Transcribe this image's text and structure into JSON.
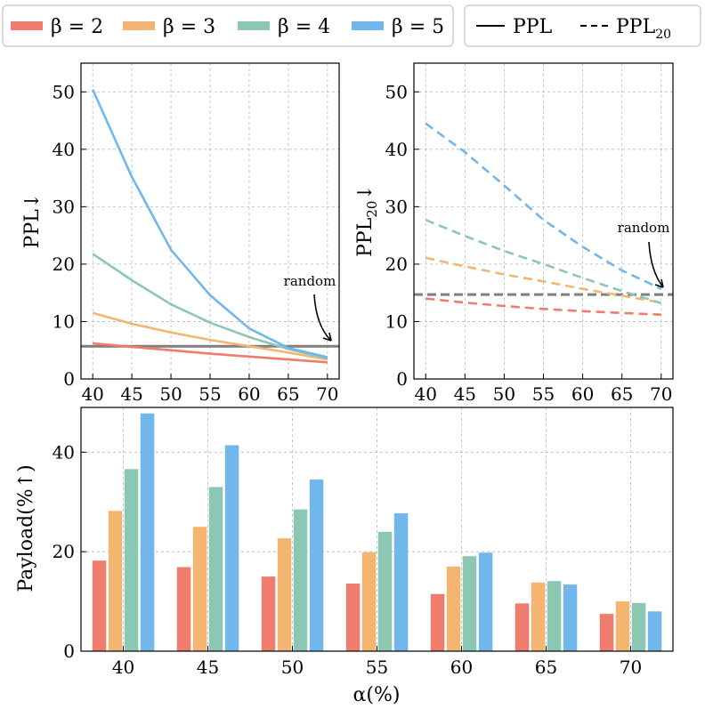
{
  "legend": {
    "beta_entries": [
      "β = 2",
      "β = 3",
      "β = 4",
      "β = 5"
    ],
    "style_solid": "PPL",
    "style_dashed_main": "PPL",
    "style_dashed_sub": "20"
  },
  "xlabel": "α(%)",
  "colors": {
    "beta2": "#f07c6e",
    "beta3": "#f3b571",
    "beta4": "#8cc7b4",
    "beta5": "#72b7ec",
    "random": "#7f7f7f"
  },
  "chart_data": [
    {
      "type": "line",
      "name": "ppl",
      "ylabel": "PPL↓",
      "x": [
        40,
        45,
        50,
        55,
        60,
        65,
        70
      ],
      "xlim": [
        38.5,
        71.5
      ],
      "ylim": [
        0,
        55
      ],
      "yticks": [
        0,
        10,
        20,
        30,
        40,
        50
      ],
      "grid": true,
      "linestyle": "solid",
      "series": [
        {
          "name": "β = 2",
          "values": [
            6.2,
            5.6,
            5.0,
            4.4,
            3.9,
            3.4,
            2.9
          ]
        },
        {
          "name": "β = 3",
          "values": [
            11.5,
            9.6,
            8.1,
            6.8,
            5.7,
            4.6,
            3.4
          ]
        },
        {
          "name": "β = 4",
          "values": [
            21.8,
            17.2,
            13.0,
            9.8,
            7.3,
            5.2,
            3.6
          ]
        },
        {
          "name": "β = 5",
          "values": [
            50.4,
            35.2,
            22.5,
            14.6,
            8.8,
            5.4,
            3.8
          ]
        }
      ],
      "baseline": {
        "label": "random",
        "value": 5.7
      }
    },
    {
      "type": "line",
      "name": "ppl20",
      "ylabel_main": "PPL",
      "ylabel_sub": "20",
      "ylabel_arrow": "↓",
      "x": [
        40,
        45,
        50,
        55,
        60,
        65,
        70
      ],
      "xlim": [
        38.5,
        71.5
      ],
      "ylim": [
        0,
        55
      ],
      "yticks": [
        0,
        10,
        20,
        30,
        40,
        50
      ],
      "grid": true,
      "linestyle": "dashed",
      "series": [
        {
          "name": "β = 2",
          "values": [
            14.0,
            13.3,
            12.7,
            12.2,
            11.8,
            11.5,
            11.2
          ]
        },
        {
          "name": "β = 3",
          "values": [
            21.1,
            19.6,
            18.2,
            17.0,
            15.7,
            14.5,
            13.3
          ]
        },
        {
          "name": "β = 4",
          "values": [
            27.7,
            24.9,
            22.3,
            20.0,
            17.6,
            15.3,
            13.2
          ]
        },
        {
          "name": "β = 5",
          "values": [
            44.5,
            39.5,
            33.7,
            27.7,
            23.0,
            18.9,
            15.7
          ]
        }
      ],
      "baseline": {
        "label": "random",
        "value": 14.7
      }
    },
    {
      "type": "bar",
      "name": "payload",
      "ylabel": "Payload(%↑)",
      "categories": [
        "40",
        "45",
        "50",
        "55",
        "60",
        "65",
        "70"
      ],
      "ylim": [
        0,
        49
      ],
      "yticks": [
        0,
        20,
        40
      ],
      "grid": true,
      "series": [
        {
          "name": "β = 2",
          "values": [
            18.2,
            16.9,
            15.0,
            13.6,
            11.5,
            9.6,
            7.5
          ]
        },
        {
          "name": "β = 3",
          "values": [
            28.2,
            25.0,
            22.7,
            19.9,
            17.0,
            13.8,
            10.0
          ]
        },
        {
          "name": "β = 4",
          "values": [
            36.6,
            33.0,
            28.5,
            24.0,
            19.1,
            14.1,
            9.7
          ]
        },
        {
          "name": "β = 5",
          "values": [
            47.8,
            41.4,
            34.5,
            27.7,
            19.8,
            13.4,
            8.0
          ]
        }
      ]
    }
  ]
}
